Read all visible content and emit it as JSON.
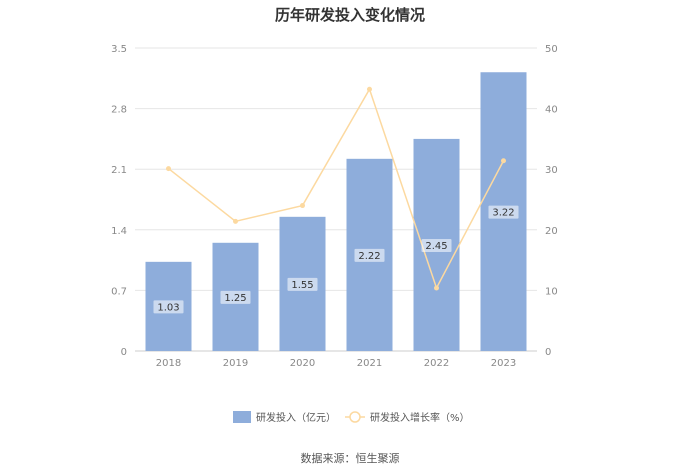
{
  "title": "历年研发投入变化情况",
  "source": "数据来源：恒生聚源",
  "chart_data": {
    "type": "bar",
    "categories": [
      "2018",
      "2019",
      "2020",
      "2021",
      "2022",
      "2023"
    ],
    "series": [
      {
        "name": "研发投入（亿元）",
        "type": "bar",
        "axis": "left",
        "color": "#8eaddb",
        "values": [
          1.03,
          1.25,
          1.55,
          2.22,
          2.45,
          3.22
        ],
        "labels": [
          "1.03",
          "1.25",
          "1.55",
          "2.22",
          "2.45",
          "3.22"
        ]
      },
      {
        "name": "研发投入增长率（%）",
        "type": "line",
        "axis": "right",
        "color": "#fcd9a0",
        "values": [
          30.1,
          21.4,
          24.0,
          43.2,
          10.4,
          31.4
        ]
      }
    ],
    "y_left": {
      "ylim": [
        0,
        3.5
      ],
      "ticks": [
        "0",
        "0.7",
        "1.4",
        "2.1",
        "2.8",
        "3.5"
      ]
    },
    "y_right": {
      "ylim": [
        0,
        50
      ],
      "ticks": [
        "0",
        "10",
        "20",
        "30",
        "40",
        "50"
      ]
    },
    "grid": true,
    "legend": "bottom"
  }
}
